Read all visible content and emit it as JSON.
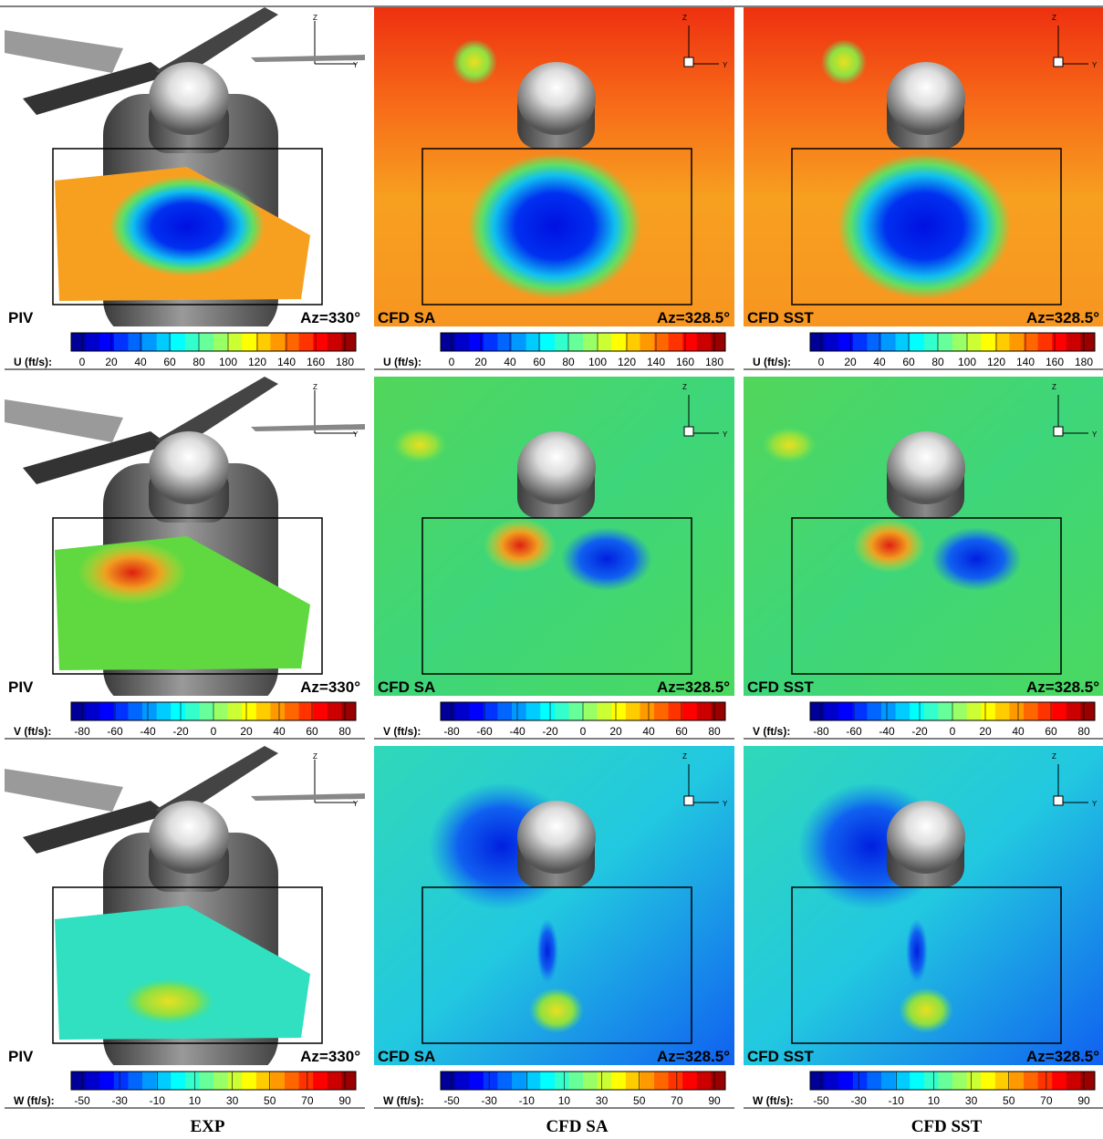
{
  "rows": [
    {
      "quantity_label": "U (ft/s):",
      "ticks": [
        0,
        20,
        40,
        60,
        80,
        100,
        120,
        140,
        160,
        180
      ]
    },
    {
      "quantity_label": "V (ft/s):",
      "ticks": [
        -80,
        -60,
        -40,
        -20,
        0,
        20,
        40,
        60,
        80
      ]
    },
    {
      "quantity_label": "W (ft/s):",
      "ticks": [
        -50,
        -30,
        -10,
        10,
        30,
        50,
        70,
        90
      ]
    }
  ],
  "panels": [
    {
      "label": "PIV",
      "azimuth": "Az=330°"
    },
    {
      "label": "CFD SA",
      "azimuth": "Az=328.5°"
    },
    {
      "label": "CFD SST",
      "azimuth": "Az=328.5°"
    }
  ],
  "triad": {
    "z": "Z",
    "y": "Y"
  },
  "column_captions": [
    "EXP",
    "CFD SA",
    "CFD SST"
  ]
}
